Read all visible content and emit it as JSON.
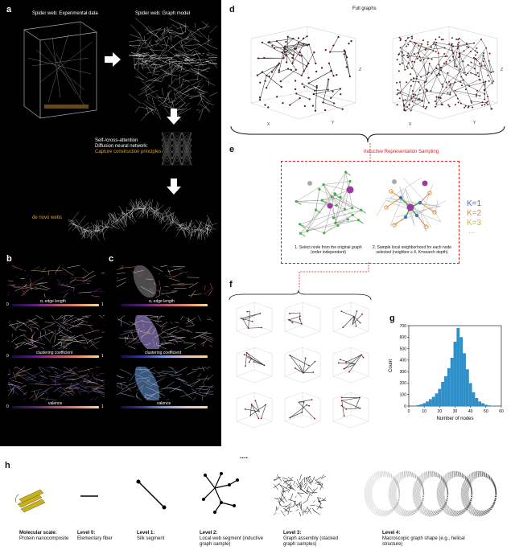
{
  "panels": {
    "a": "a",
    "b": "b",
    "c": "c",
    "d": "d",
    "e": "e",
    "f": "f",
    "g": "g",
    "h": "h"
  },
  "panel_a": {
    "exp_title": "Spider web: Experimental data",
    "graph_title": "Spider web: Graph model",
    "attention_line1": "Self-/cross-attention",
    "attention_line2": "Diffusion neural network:",
    "attention_line3": "Capture construction principles",
    "denovo": "de novo webs"
  },
  "panel_b": {
    "bar1": "α, edge length",
    "bar2": "clustering coefficient",
    "bar3": "valence",
    "min": "0",
    "max": "1"
  },
  "panel_c": {
    "bar1": "α, edge length",
    "bar2": "clustering coefficient",
    "bar3": "valence"
  },
  "panel_d": {
    "title": "Full graphs",
    "axis_x": "X",
    "axis_y": "Y",
    "axis_z": "Z"
  },
  "panel_e": {
    "title": "Inductive Representation Sampling",
    "step1": "1. Select node from the original graph (order independent)",
    "step2": "2. Sample local neighborhood for each node selected (neighbor ≤ 4, K=search depth)",
    "k1": "K=1",
    "k2": "K=2",
    "k3": "K=3",
    "kdots": "...",
    "colors": {
      "k1": "#3a78b8",
      "k2": "#e08a30",
      "k3": "#e0b020"
    }
  },
  "panel_g": {
    "chart_data": {
      "type": "bar",
      "xlabel": "Number of nodes",
      "ylabel": "Count",
      "xlim": [
        0,
        60
      ],
      "ylim": [
        0,
        700
      ],
      "xticks": [
        "0",
        "10",
        "20",
        "30",
        "40",
        "50",
        "60"
      ],
      "yticks": [
        "0",
        "100",
        "200",
        "300",
        "400",
        "500",
        "600",
        "700"
      ],
      "bin_starts": [
        5,
        7,
        9,
        11,
        13,
        15,
        17,
        19,
        21,
        23,
        25,
        27,
        29,
        31,
        33,
        35,
        37,
        39,
        41,
        43,
        45,
        47,
        49,
        51,
        53
      ],
      "bin_width": 2,
      "values": [
        8,
        15,
        25,
        40,
        60,
        80,
        110,
        150,
        210,
        260,
        330,
        420,
        560,
        680,
        600,
        460,
        320,
        200,
        120,
        70,
        40,
        25,
        12,
        6,
        3
      ],
      "color": "#2f8fc8"
    }
  },
  "panel_h": {
    "dots": "....",
    "levels": [
      {
        "name": "Molecular scale:",
        "desc": "Protein nanocomposite"
      },
      {
        "name": "Level 0:",
        "desc": "Elementary fiber"
      },
      {
        "name": "Level 1:",
        "desc": "Silk segment"
      },
      {
        "name": "Level 2:",
        "desc": "Local web segment (inductive graph sample)"
      },
      {
        "name": "Level 3:",
        "desc": "Graph assembly (stacked graph samples)"
      },
      {
        "name": "Level 4:",
        "desc": "Macroscopic graph shape (e.g., helical structure)"
      }
    ]
  }
}
